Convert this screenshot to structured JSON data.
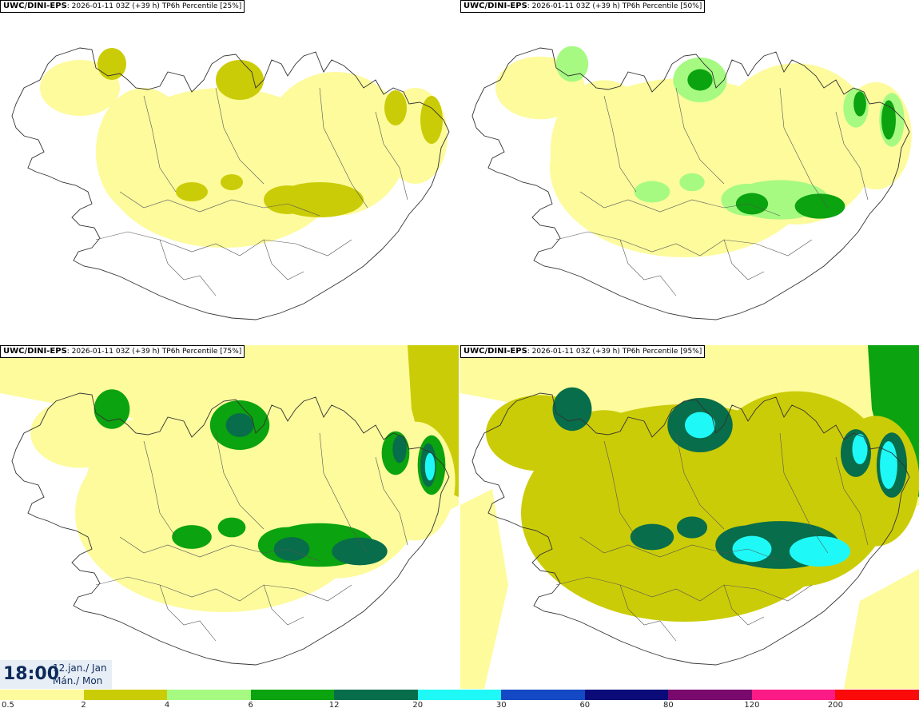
{
  "panels": [
    {
      "model": "UWC/DINI-EPS",
      "run": "2026-01-11 03Z (+39 h)",
      "field": "TP6h Percentile [25%]",
      "level": 0
    },
    {
      "model": "UWC/DINI-EPS",
      "run": "2026-01-11 03Z (+39 h)",
      "field": "TP6h Percentile [50%]",
      "level": 1
    },
    {
      "model": "UWC/DINI-EPS",
      "run": "2026-01-11 03Z (+39 h)",
      "field": "TP6h Percentile [75%]",
      "level": 2
    },
    {
      "model": "UWC/DINI-EPS",
      "run": "2026-01-11 03Z (+39 h)",
      "field": "TP6h Percentile [95%]",
      "level": 3
    }
  ],
  "valid_time": {
    "time": "18:00",
    "date": "12.jan./ Jan",
    "weekday": "Mán./ Mon"
  },
  "legend": {
    "labels": [
      "0.5",
      "2",
      "4",
      "6",
      "12",
      "20",
      "30",
      "60",
      "80",
      "120",
      "200"
    ],
    "colors": [
      "#fdfb9c",
      "#cbcc08",
      "#a6fa82",
      "#0ba30f",
      "#086d4a",
      "#1ef9f7",
      "#1349c4",
      "#0a0a79",
      "#79096c",
      "#fb1b87",
      "#fb0a0a"
    ]
  }
}
